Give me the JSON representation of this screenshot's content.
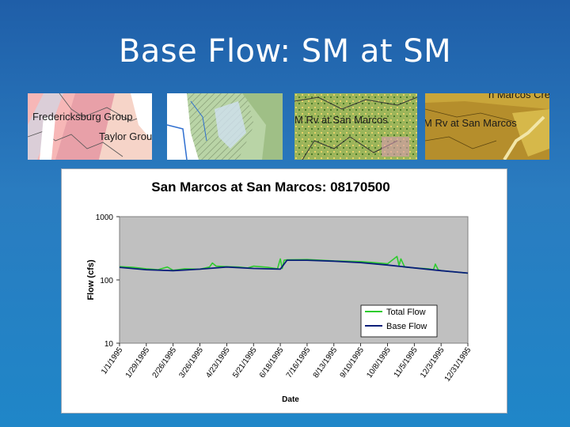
{
  "slide": {
    "title": "Base Flow: SM at SM"
  },
  "thumbnails": [
    {
      "labels": [
        "Fredericksburg Group",
        "Taylor Group"
      ]
    },
    {
      "labels": []
    },
    {
      "labels": [
        "M Rv at San Marcos"
      ]
    },
    {
      "labels": [
        "M Rv at San Marcos",
        "n Marcos Creek"
      ]
    }
  ],
  "colors": {
    "total_flow": "#2ecc2e",
    "base_flow": "#0a1f7a",
    "plot_area": "#c0c0c0",
    "slide_bg": "#2370b8"
  },
  "chart_data": {
    "type": "line",
    "title": "San Marcos at San Marcos: 08170500",
    "xlabel": "Date",
    "ylabel": "Flow (cfs)",
    "yscale": "log",
    "ylim": [
      10,
      1000
    ],
    "yticks": [
      "1000",
      "100",
      "10"
    ],
    "xlim": [
      "1/1/1995",
      "12/31/1995"
    ],
    "xticks": [
      "1/1/1995",
      "1/29/1995",
      "2/26/1995",
      "3/26/1995",
      "4/23/1995",
      "5/21/1995",
      "6/18/1995",
      "7/16/1995",
      "8/13/1995",
      "9/10/1995",
      "10/8/1995",
      "11/5/1995",
      "12/3/1995",
      "12/31/1995"
    ],
    "legend_position": "bottom-right",
    "grid": false,
    "series": [
      {
        "name": "Total Flow",
        "x": [
          "1/1/1995",
          "1/15/1995",
          "1/29/1995",
          "2/10/1995",
          "2/20/1995",
          "2/26/1995",
          "3/10/1995",
          "3/26/1995",
          "4/5/1995",
          "4/8/1995",
          "4/12/1995",
          "4/23/1995",
          "5/5/1995",
          "5/15/1995",
          "5/21/1995",
          "6/5/1995",
          "6/15/1995",
          "6/18/1995",
          "6/20/1995",
          "6/22/1995",
          "6/25/1995",
          "7/16/1995",
          "8/13/1995",
          "9/10/1995",
          "9/20/1995",
          "10/8/1995",
          "10/18/1995",
          "10/20/1995",
          "10/22/1995",
          "10/26/1995",
          "11/5/1995",
          "11/20/1995",
          "11/25/1995",
          "11/27/1995",
          "11/30/1995",
          "12/3/1995",
          "12/31/1995"
        ],
        "values": [
          162,
          158,
          150,
          145,
          160,
          142,
          150,
          148,
          160,
          185,
          165,
          162,
          160,
          155,
          165,
          158,
          150,
          215,
          152,
          205,
          208,
          210,
          200,
          195,
          190,
          180,
          235,
          170,
          215,
          160,
          155,
          150,
          145,
          178,
          145,
          140,
          128
        ]
      },
      {
        "name": "Base Flow",
        "x": [
          "1/1/1995",
          "1/29/1995",
          "2/26/1995",
          "3/26/1995",
          "4/23/1995",
          "5/21/1995",
          "6/18/1995",
          "6/25/1995",
          "7/16/1995",
          "8/13/1995",
          "9/10/1995",
          "10/8/1995",
          "11/5/1995",
          "12/3/1995",
          "12/31/1995"
        ],
        "values": [
          158,
          145,
          140,
          148,
          160,
          152,
          148,
          205,
          205,
          198,
          188,
          172,
          155,
          140,
          128
        ]
      }
    ]
  }
}
